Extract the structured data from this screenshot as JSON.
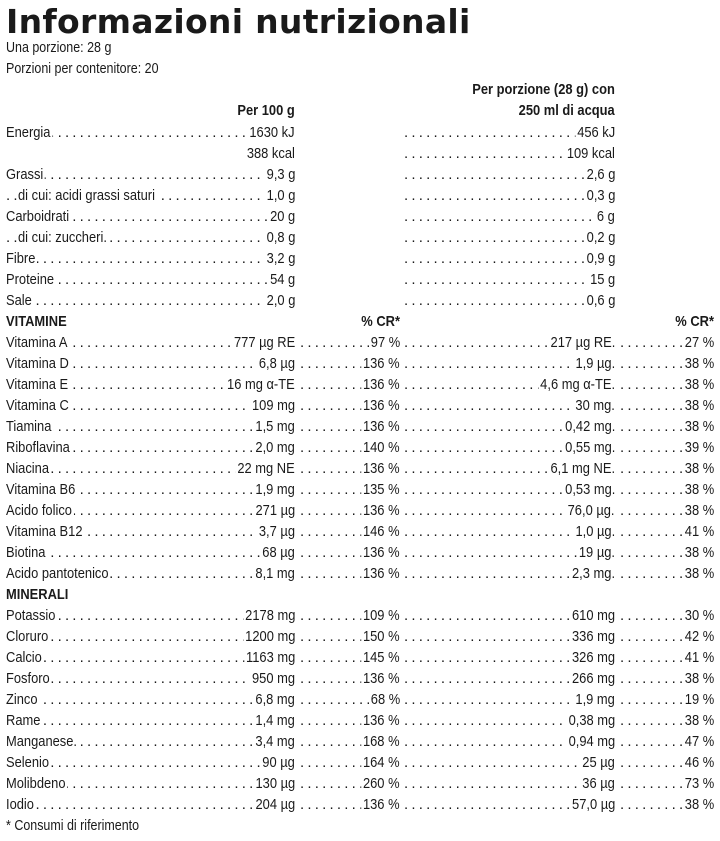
{
  "title": "Informazioni nutrizionali",
  "serving": "Una porzione: 28 g",
  "servings_per_container": "Porzioni per contenitore: 20",
  "headers": {
    "per100": "Per 100 g",
    "per_portion_line1": "Per porzione (28 g) con",
    "per_portion_line2": "250 ml di acqua",
    "cr": "% CR*",
    "cr2": "% CR*"
  },
  "macros": [
    {
      "label": "Energia",
      "per100": "1630 kJ",
      "portion": "456 kJ"
    },
    {
      "label": "",
      "per100": "388 kcal",
      "portion": "109 kcal"
    },
    {
      "label": "Grassi",
      "per100": "9,3 g",
      "portion": "2,6 g"
    },
    {
      "label": "di cui: acidi grassi saturi",
      "per100": "1,0 g",
      "portion": "0,3 g",
      "indent": true
    },
    {
      "label": "Carboidrati",
      "per100": "20 g",
      "portion": "6 g"
    },
    {
      "label": "di cui: zuccheri.",
      "per100": "0,8 g",
      "portion": "0,2 g",
      "indent": true
    },
    {
      "label": "Fibre",
      "per100": "3,2 g",
      "portion": "0,9 g"
    },
    {
      "label": "Proteine",
      "per100": "54 g",
      "portion": "15 g"
    },
    {
      "label": "Sale",
      "per100": "2,0 g",
      "portion": "0,6 g"
    }
  ],
  "vitamins": {
    "heading": "VITAMINE",
    "rows": [
      {
        "label": "Vitamina A",
        "per100": "777 µg RE",
        "cr": "97 %",
        "portion": "217 µg RE.",
        "cr2": "27 %"
      },
      {
        "label": "Vitamina D",
        "per100": "6,8 µg",
        "cr": "136 %",
        "portion": "1,9 µg.",
        "cr2": "38 %"
      },
      {
        "label": "Vitamina E",
        "per100": "16 mg α-TE",
        "cr": "136 %",
        "portion": "4,6 mg α-TE.",
        "cr2": "38 %"
      },
      {
        "label": "Vitamina C",
        "per100": "109 mg",
        "cr": "136 %",
        "portion": "30 mg.",
        "cr2": "38 %"
      },
      {
        "label": "Tiamina",
        "per100": "1,5 mg",
        "cr": "136 %",
        "portion": "0,42 mg.",
        "cr2": "38 %"
      },
      {
        "label": "Riboflavina",
        "per100": "2,0 mg",
        "cr": "140 %",
        "portion": "0,55 mg.",
        "cr2": "39 %"
      },
      {
        "label": "Niacina",
        "per100": "22 mg NE",
        "cr": "136 %",
        "portion": "6,1 mg NE.",
        "cr2": "38 %"
      },
      {
        "label": "Vitamina B6",
        "per100": "1,9 mg",
        "cr": "135 %",
        "portion": "0,53 mg.",
        "cr2": "38 %"
      },
      {
        "label": "Acido folico",
        "per100": "271 µg",
        "cr": "136 %",
        "portion": "76,0 µg.",
        "cr2": "38 %"
      },
      {
        "label": "Vitamina B12",
        "per100": "3,7 µg",
        "cr": "146 %",
        "portion": "1,0 µg.",
        "cr2": "41 %"
      },
      {
        "label": "Biotina",
        "per100": "68 µg",
        "cr": "136 %",
        "portion": "19 µg.",
        "cr2": "38 %"
      },
      {
        "label": "Acido pantotenico",
        "per100": "8,1 mg",
        "cr": "136 %",
        "portion": "2,3 mg.",
        "cr2": "38 %"
      }
    ]
  },
  "minerals": {
    "heading": "MINERALI",
    "rows": [
      {
        "label": "Potassio",
        "per100": "2178 mg",
        "cr": "109 %",
        "portion": "610 mg",
        "cr2": "30 %"
      },
      {
        "label": "Cloruro",
        "per100": "1200 mg",
        "cr": "150 %",
        "portion": "336 mg",
        "cr2": "42 %"
      },
      {
        "label": "Calcio",
        "per100": "1163 mg",
        "cr": "145 %",
        "portion": "326 mg",
        "cr2": "41 %"
      },
      {
        "label": "Fosforo",
        "per100": "950 mg",
        "cr": "136 %",
        "portion": "266 mg",
        "cr2": "38 %"
      },
      {
        "label": "Zinco",
        "per100": "6,8 mg",
        "cr": "68 %",
        "portion": "1,9 mg",
        "cr2": "19 %"
      },
      {
        "label": "Rame",
        "per100": "1,4 mg",
        "cr": "136 %",
        "portion": "0,38 mg",
        "cr2": "38 %"
      },
      {
        "label": "Manganese.",
        "per100": "3,4 mg",
        "cr": "168 %",
        "portion": "0,94 mg",
        "cr2": "47 %"
      },
      {
        "label": "Selenio",
        "per100": "90 µg",
        "cr": "164 %",
        "portion": "25 µg",
        "cr2": "46 %"
      },
      {
        "label": "Molibdeno",
        "per100": "130 µg",
        "cr": "260 %",
        "portion": "36 µg",
        "cr2": "73 %"
      },
      {
        "label": "Iodio",
        "per100": "204 µg",
        "cr": "136 %",
        "portion": "57,0 µg",
        "cr2": "38 %"
      }
    ]
  },
  "footnote": "* Consumi di riferimento"
}
